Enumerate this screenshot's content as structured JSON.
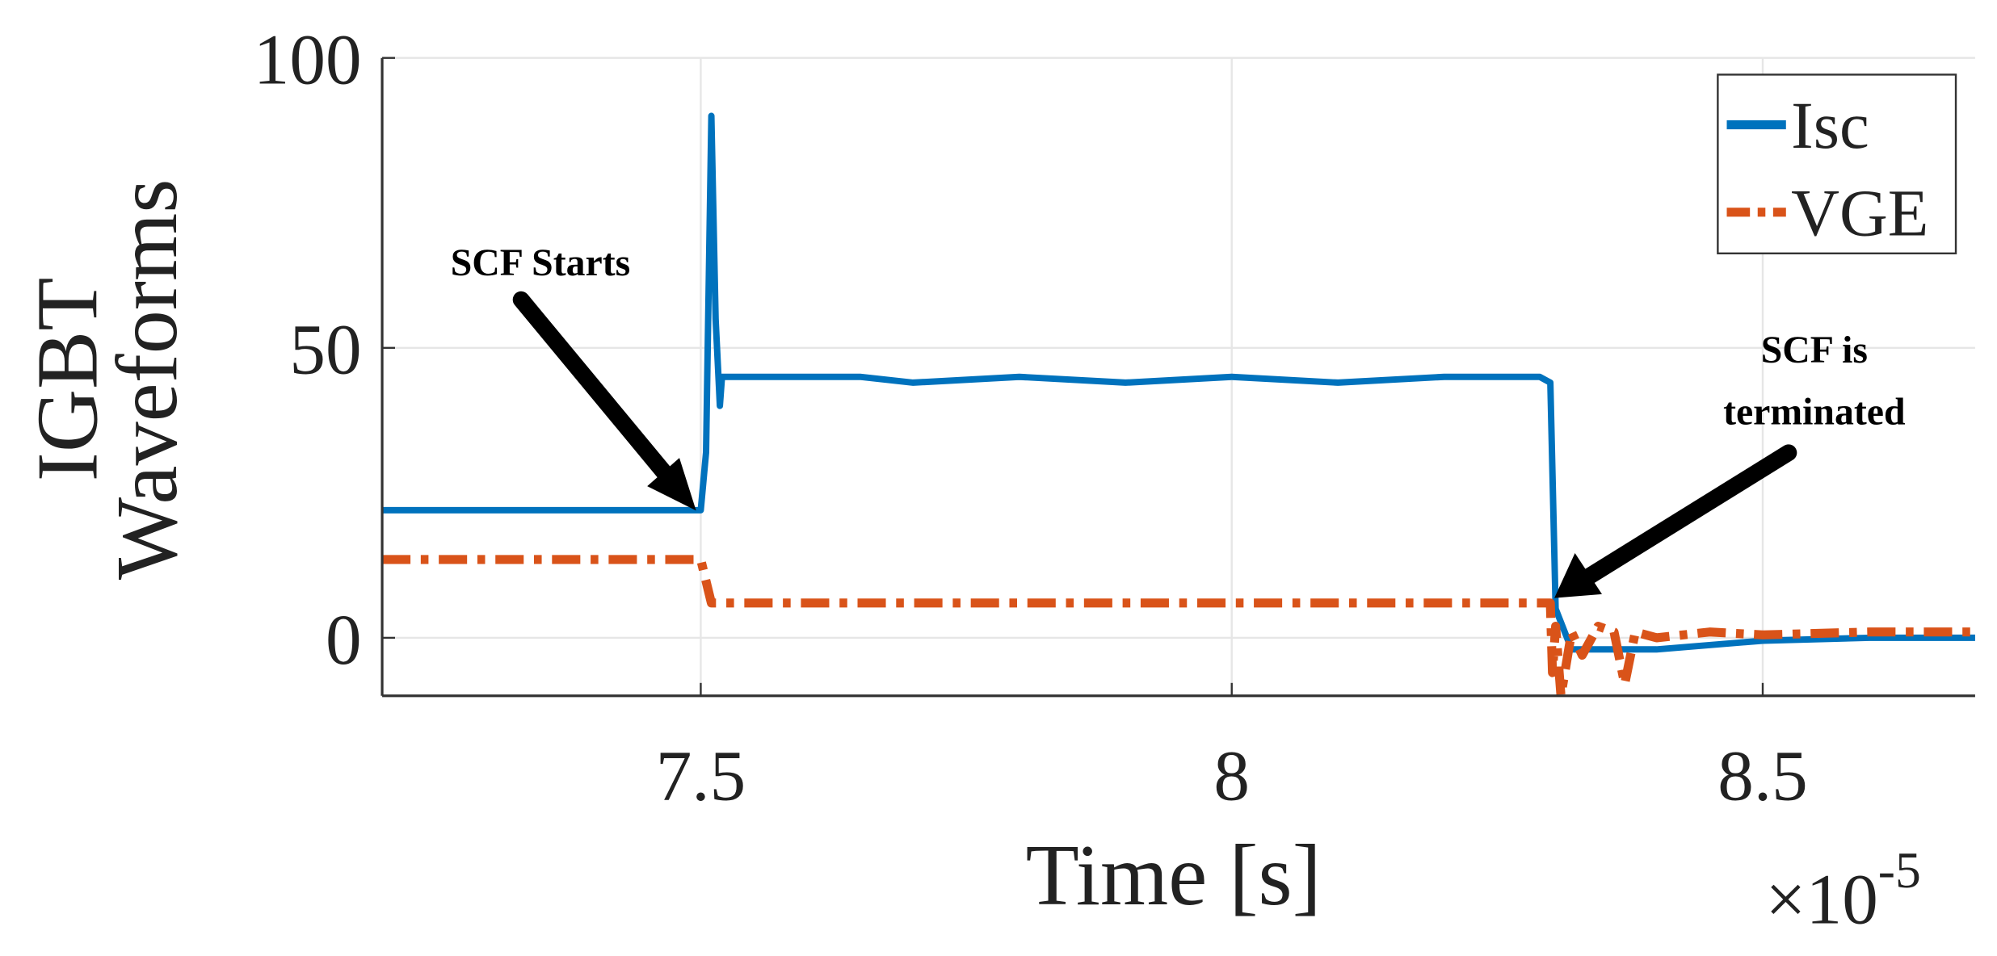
{
  "chart_data": {
    "type": "line",
    "x_label": "Time [s]",
    "y_label": [
      "IGBT",
      "Waveforms"
    ],
    "x_multiplier": {
      "base": "×10",
      "exponent": "-5"
    },
    "xlim": [
      7.2,
      8.7
    ],
    "xticks": [
      7.5,
      8,
      8.5
    ],
    "ylim": [
      -10,
      100
    ],
    "yticks": [
      0,
      50,
      100
    ],
    "grid": true,
    "legend": "upper right",
    "series": [
      {
        "name": "Isc",
        "color": "#0072bd",
        "style": "solid",
        "x": [
          7.2,
          7.5,
          7.505,
          7.51,
          7.514,
          7.518,
          7.52,
          7.53,
          7.65,
          7.7,
          7.8,
          7.9,
          8.0,
          8.1,
          8.2,
          8.29,
          8.3,
          8.305,
          8.32,
          8.4,
          8.5,
          8.6,
          8.7
        ],
        "values": [
          22,
          22,
          32,
          90,
          55,
          40,
          45,
          45,
          45,
          44,
          45,
          44,
          45,
          44,
          45,
          45,
          44,
          5,
          -2,
          -2,
          -0.5,
          0,
          0
        ]
      },
      {
        "name": "VGE",
        "color": "#d95319",
        "style": "dashdot",
        "x": [
          7.2,
          7.5,
          7.51,
          7.52,
          8.3,
          8.302,
          8.305,
          8.31,
          8.32,
          8.33,
          8.345,
          8.36,
          8.37,
          8.38,
          8.4,
          8.45,
          8.5,
          8.6,
          8.7
        ],
        "values": [
          13.5,
          13.5,
          6,
          6,
          6,
          -6,
          2,
          -10,
          1,
          -3,
          2,
          1,
          -8,
          1,
          0,
          1,
          0.5,
          1,
          1
        ]
      }
    ],
    "annotations": [
      {
        "text": [
          "SCF Starts"
        ]
      },
      {
        "text": [
          "SCF is",
          "terminated"
        ]
      }
    ]
  }
}
